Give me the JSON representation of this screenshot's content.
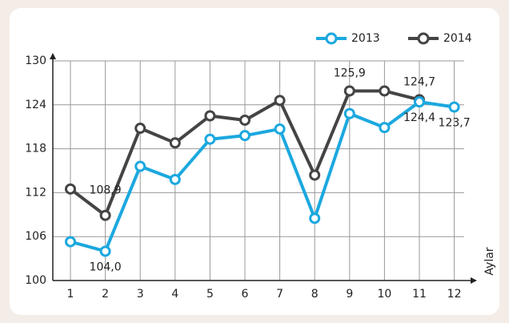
{
  "chart_data": {
    "type": "line",
    "x_label": "Aylar",
    "categories": [
      "1",
      "2",
      "3",
      "4",
      "5",
      "6",
      "7",
      "8",
      "9",
      "10",
      "11",
      "12"
    ],
    "series": [
      {
        "name": "2013",
        "color": "#1ba8df",
        "values": [
          105.3,
          104.0,
          115.6,
          113.8,
          119.3,
          119.8,
          120.7,
          108.5,
          122.8,
          120.9,
          124.4,
          123.7
        ],
        "value_labels": [
          null,
          "104,0",
          null,
          null,
          null,
          null,
          null,
          null,
          null,
          null,
          "124,4",
          "123,7"
        ]
      },
      {
        "name": "2014",
        "color": "#444444",
        "values": [
          112.5,
          108.9,
          120.8,
          118.8,
          122.5,
          121.9,
          124.6,
          114.4,
          125.9,
          125.9,
          124.7,
          null
        ],
        "value_labels": [
          null,
          "108,9",
          null,
          null,
          null,
          null,
          null,
          null,
          "125,9",
          null,
          "124,7",
          null
        ]
      }
    ],
    "ylim": [
      100,
      130
    ],
    "yticks": [
      100,
      106,
      112,
      118,
      124,
      130
    ],
    "grid": true,
    "legend": "top-right"
  }
}
